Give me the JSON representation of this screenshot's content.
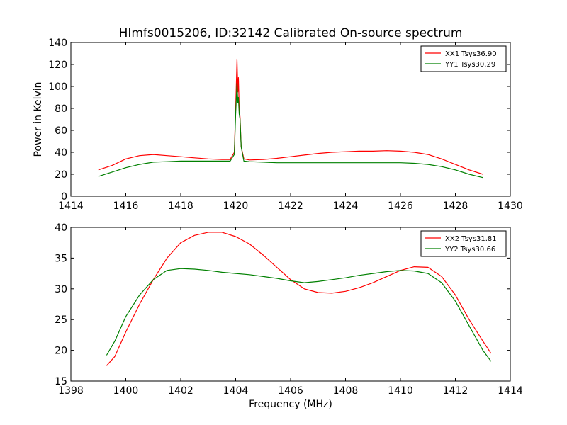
{
  "chart_data": [
    {
      "type": "line",
      "title": "HImfs0015206, ID:32142 Calibrated On-source spectrum",
      "xlabel": "",
      "ylabel": "Power in Kelvin",
      "xlim": [
        1414,
        1430
      ],
      "ylim": [
        0,
        140
      ],
      "xticks": [
        1414,
        1416,
        1418,
        1420,
        1422,
        1424,
        1426,
        1428,
        1430
      ],
      "yticks": [
        0,
        20,
        40,
        60,
        80,
        100,
        120,
        140
      ],
      "grid": false,
      "legend_position": "top-right",
      "series": [
        {
          "name": "XX1 Tsys36.90",
          "color": "#ff0000",
          "x": [
            1415.0,
            1415.5,
            1416.0,
            1416.5,
            1417.0,
            1417.5,
            1418.0,
            1418.5,
            1419.0,
            1419.5,
            1419.8,
            1419.95,
            1420.0,
            1420.05,
            1420.08,
            1420.1,
            1420.13,
            1420.16,
            1420.2,
            1420.3,
            1420.5,
            1421.0,
            1421.5,
            1422.0,
            1422.5,
            1423.0,
            1423.5,
            1424.0,
            1424.5,
            1425.0,
            1425.5,
            1426.0,
            1426.5,
            1427.0,
            1427.5,
            1428.0,
            1428.5,
            1429.0
          ],
          "y": [
            24,
            28,
            34,
            37,
            38,
            37,
            36,
            35,
            34,
            33.5,
            33.5,
            40,
            80,
            125,
            95,
            108,
            80,
            72,
            45,
            34,
            33,
            33.5,
            34.5,
            36,
            37.5,
            39,
            40,
            40.5,
            41,
            41,
            41.5,
            41,
            40,
            38,
            34,
            29,
            24,
            20
          ]
        },
        {
          "name": "YY1 Tsys30.29",
          "color": "#008000",
          "x": [
            1415.0,
            1415.5,
            1416.0,
            1416.5,
            1417.0,
            1417.5,
            1418.0,
            1418.5,
            1419.0,
            1419.5,
            1419.8,
            1419.95,
            1420.0,
            1420.05,
            1420.08,
            1420.1,
            1420.13,
            1420.16,
            1420.2,
            1420.3,
            1420.5,
            1421.0,
            1421.5,
            1422.0,
            1422.5,
            1423.0,
            1423.5,
            1424.0,
            1424.5,
            1425.0,
            1425.5,
            1426.0,
            1426.5,
            1427.0,
            1427.5,
            1428.0,
            1428.5,
            1429.0
          ],
          "y": [
            18,
            22,
            26,
            29,
            31,
            31.5,
            32,
            32,
            32,
            32,
            32,
            38,
            75,
            103,
            85,
            90,
            75,
            70,
            45,
            32,
            31.5,
            31,
            30.5,
            30.5,
            30.5,
            30.5,
            30.5,
            30.5,
            30.5,
            30.5,
            30.5,
            30.5,
            30,
            29,
            27,
            24,
            20,
            17
          ]
        }
      ]
    },
    {
      "type": "line",
      "title": "",
      "xlabel": "Frequency (MHz)",
      "ylabel": "",
      "xlim": [
        1398,
        1414
      ],
      "ylim": [
        15,
        40
      ],
      "xticks": [
        1398,
        1400,
        1402,
        1404,
        1406,
        1408,
        1410,
        1412,
        1414
      ],
      "yticks": [
        15,
        20,
        25,
        30,
        35,
        40
      ],
      "grid": false,
      "legend_position": "top-right",
      "series": [
        {
          "name": "XX2 Tsys31.81",
          "color": "#ff0000",
          "x": [
            1399.3,
            1399.6,
            1400.0,
            1400.5,
            1401.0,
            1401.5,
            1402.0,
            1402.5,
            1403.0,
            1403.5,
            1404.0,
            1404.5,
            1405.0,
            1405.5,
            1406.0,
            1406.5,
            1407.0,
            1407.5,
            1408.0,
            1408.5,
            1409.0,
            1409.5,
            1410.0,
            1410.5,
            1411.0,
            1411.5,
            1412.0,
            1412.5,
            1413.0,
            1413.3
          ],
          "y": [
            17.5,
            19,
            23,
            27.5,
            31.5,
            35,
            37.5,
            38.7,
            39.2,
            39.2,
            38.5,
            37.3,
            35.5,
            33.5,
            31.5,
            30,
            29.4,
            29.3,
            29.6,
            30.2,
            31,
            32,
            33,
            33.6,
            33.5,
            32,
            29,
            25,
            21.5,
            19.5
          ]
        },
        {
          "name": "YY2 Tsys30.66",
          "color": "#008000",
          "x": [
            1399.3,
            1399.6,
            1400.0,
            1400.5,
            1401.0,
            1401.5,
            1402.0,
            1402.5,
            1403.0,
            1403.5,
            1404.0,
            1404.5,
            1405.0,
            1405.5,
            1406.0,
            1406.5,
            1407.0,
            1407.5,
            1408.0,
            1408.5,
            1409.0,
            1409.5,
            1410.0,
            1410.5,
            1411.0,
            1411.5,
            1412.0,
            1412.5,
            1413.0,
            1413.3
          ],
          "y": [
            19.2,
            21.5,
            25.5,
            29,
            31.5,
            33,
            33.3,
            33.2,
            33,
            32.7,
            32.5,
            32.3,
            32,
            31.7,
            31.3,
            31,
            31.2,
            31.5,
            31.8,
            32.2,
            32.5,
            32.8,
            33,
            32.9,
            32.5,
            31,
            28,
            24,
            20,
            18.2
          ]
        }
      ]
    }
  ]
}
